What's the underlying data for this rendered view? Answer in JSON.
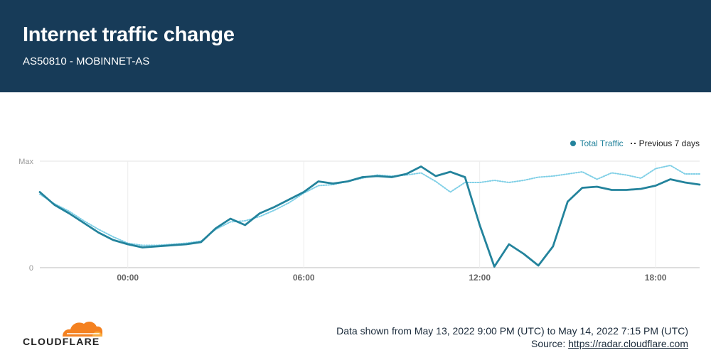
{
  "header": {
    "title": "Internet traffic change",
    "subtitle": "AS50810 - MOBINNET-AS"
  },
  "colors": {
    "header_bg": "#173b58",
    "series_total": "#23839c",
    "series_prev": "#7fcfe6",
    "logo_orange": "#f48120"
  },
  "footer": {
    "range_text": "Data shown from May 13, 2022 9:00 PM (UTC) to May 14, 2022 7:15 PM (UTC)",
    "source_label": "Source: ",
    "source_link": "https://radar.cloudflare.com"
  },
  "logo": {
    "text": "CLOUDFLARE",
    "icon": "cloudflare-cloud-icon"
  },
  "chart_data": {
    "type": "line",
    "title": "",
    "xlabel": "",
    "ylabel": "",
    "y_tick_labels": [
      "Max",
      "0"
    ],
    "x_tick_labels": [
      "00:00",
      "06:00",
      "12:00",
      "18:00"
    ],
    "x_tick_hours": [
      3,
      9,
      15,
      21
    ],
    "xlim": [
      0,
      22.5
    ],
    "ylim": [
      0,
      100
    ],
    "grid": true,
    "legend_position": "top-right",
    "x": [
      0,
      0.5,
      1,
      1.5,
      2,
      2.5,
      3,
      3.5,
      4,
      4.5,
      5,
      5.5,
      6,
      6.5,
      7,
      7.5,
      8,
      8.5,
      9,
      9.5,
      10,
      10.5,
      11,
      11.5,
      12,
      12.5,
      13,
      13.5,
      14,
      14.5,
      15,
      15.5,
      16,
      16.5,
      17,
      17.5,
      18,
      18.5,
      19,
      19.5,
      20,
      20.5,
      21,
      21.5,
      22,
      22.5
    ],
    "series": [
      {
        "name": "Total Traffic",
        "style": "solid",
        "values": [
          71,
          59,
          51,
          42,
          33,
          26,
          22,
          19,
          20,
          21,
          22,
          24,
          37,
          46,
          40,
          51,
          57,
          64,
          71,
          81,
          79,
          81,
          85,
          86,
          85,
          88,
          95,
          86,
          90,
          85,
          40,
          1,
          22,
          13,
          2,
          20,
          62,
          75,
          76,
          73,
          73,
          74,
          77,
          83,
          80,
          78
        ]
      },
      {
        "name": "Previous 7 days",
        "style": "dotted",
        "values": [
          69,
          60,
          53,
          44,
          36,
          29,
          23,
          21,
          21,
          22,
          23,
          25,
          36,
          43,
          44,
          48,
          54,
          61,
          70,
          77,
          78,
          81,
          84,
          87,
          86,
          87,
          89,
          81,
          71,
          80,
          80,
          82,
          80,
          82,
          85,
          86,
          88,
          90,
          83,
          89,
          87,
          84,
          93,
          96,
          88,
          88
        ]
      }
    ]
  }
}
